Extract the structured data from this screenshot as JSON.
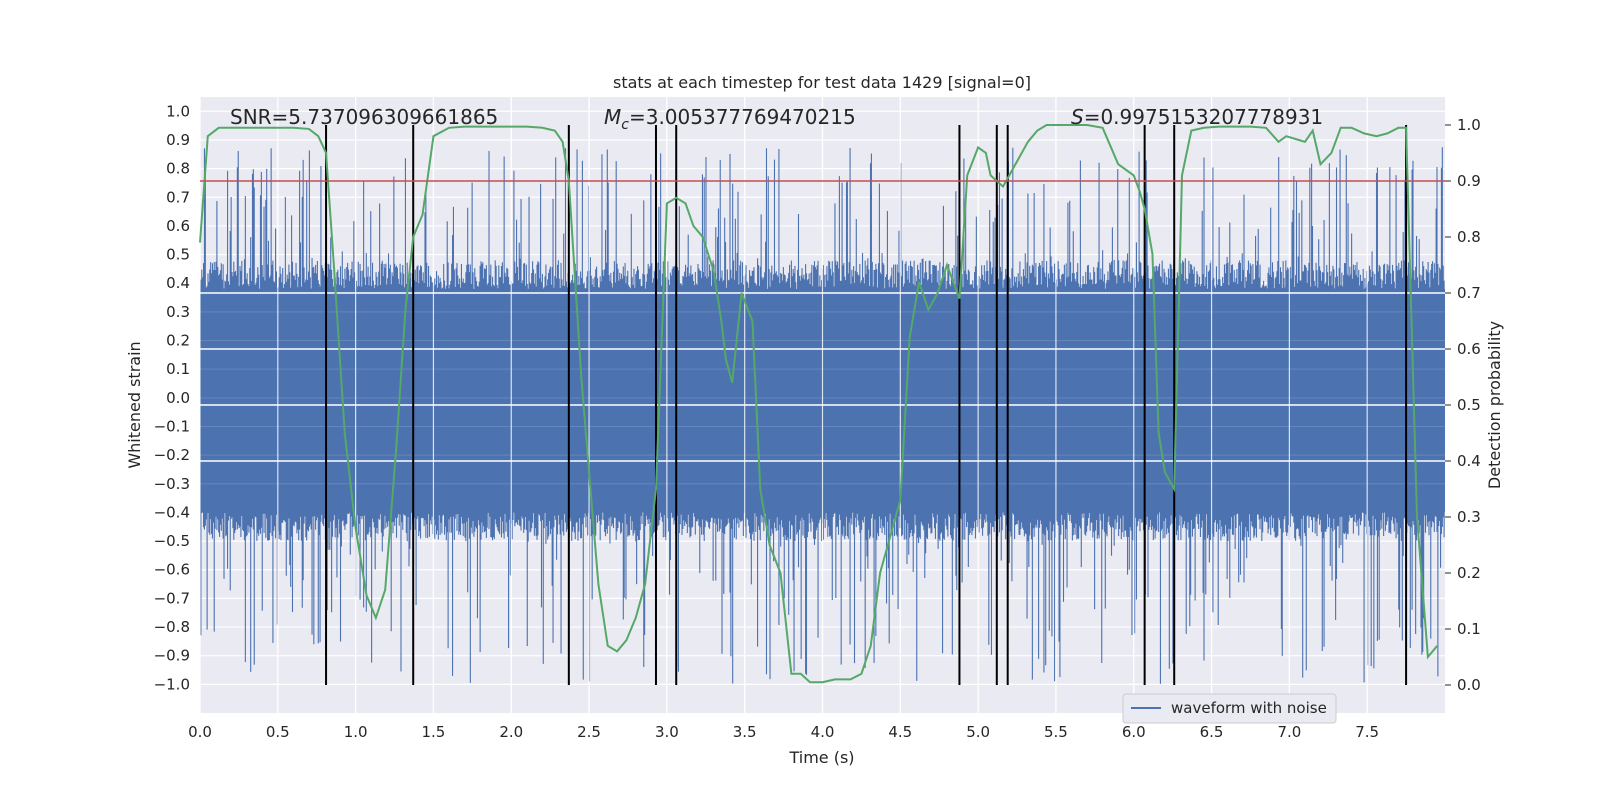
{
  "chart_data": {
    "type": "line",
    "title": "stats at each timestep for test data 1429 [signal=0]",
    "xlabel": "Time (s)",
    "ylabel": "Whitened strain",
    "y2label": "Detection probability",
    "xlim": [
      0,
      8.0
    ],
    "ylim": [
      -1.1,
      1.05
    ],
    "y2lim": [
      -0.05,
      1.05
    ],
    "xticks": [
      "0.0",
      "0.5",
      "1.0",
      "1.5",
      "2.0",
      "2.5",
      "3.0",
      "3.5",
      "4.0",
      "4.5",
      "5.0",
      "5.5",
      "6.0",
      "6.5",
      "7.0",
      "7.5"
    ],
    "yticks": [
      "-1.0",
      "-0.9",
      "-0.8",
      "-0.7",
      "-0.6",
      "-0.5",
      "-0.4",
      "-0.3",
      "-0.2",
      "-0.1",
      "0.0",
      "0.1",
      "0.2",
      "0.3",
      "0.4",
      "0.5",
      "0.6",
      "0.7",
      "0.8",
      "0.9",
      "1.0"
    ],
    "y2ticks": [
      "0.0",
      "0.1",
      "0.2",
      "0.3",
      "0.4",
      "0.5",
      "0.6",
      "0.7",
      "0.8",
      "0.9",
      "1.0"
    ],
    "annotations": {
      "snr": "SNR=5.737096309661865",
      "mc_symbol": "M",
      "mc_sub": "c",
      "mc_value": "=3.005377769470215",
      "s_symbol": "S",
      "s_value": "=0.9975153207778931"
    },
    "legend": {
      "label": "waveform with noise",
      "placement": "lower-right"
    },
    "threshold": 0.9,
    "vlines": [
      0.81,
      1.37,
      2.37,
      2.93,
      3.06,
      4.88,
      5.12,
      5.19,
      6.07,
      6.26,
      7.75
    ],
    "series": [
      {
        "name": "waveform with noise",
        "color": "#4c72b0",
        "axis": "left",
        "band_low": -0.4,
        "band_high": 0.38,
        "spike_max": 0.88,
        "spike_min": -1.0,
        "samples": 1400,
        "x_start": 0.0,
        "x_end": 8.0
      },
      {
        "name": "detection probability",
        "color": "#55a868",
        "axis": "right",
        "x": [
          0.0,
          0.05,
          0.12,
          0.2,
          0.3,
          0.4,
          0.5,
          0.6,
          0.7,
          0.76,
          0.81,
          0.86,
          0.93,
          1.0,
          1.07,
          1.13,
          1.19,
          1.26,
          1.32,
          1.37,
          1.43,
          1.5,
          1.6,
          1.7,
          1.8,
          2.0,
          2.1,
          2.2,
          2.28,
          2.33,
          2.37,
          2.45,
          2.5,
          2.56,
          2.62,
          2.68,
          2.74,
          2.8,
          2.86,
          2.93,
          3.0,
          3.06,
          3.12,
          3.17,
          3.23,
          3.3,
          3.35,
          3.38,
          3.42,
          3.48,
          3.55,
          3.6,
          3.66,
          3.73,
          3.8,
          3.86,
          3.92,
          4.0,
          4.08,
          4.18,
          4.25,
          4.31,
          4.37,
          4.43,
          4.5,
          4.56,
          4.62,
          4.68,
          4.74,
          4.8,
          4.88,
          4.93,
          5.0,
          5.05,
          5.08,
          5.12,
          5.16,
          5.2,
          5.26,
          5.32,
          5.38,
          5.44,
          5.5,
          5.6,
          5.7,
          5.8,
          5.9,
          6.0,
          6.04,
          6.07,
          6.12,
          6.16,
          6.2,
          6.26,
          6.31,
          6.37,
          6.45,
          6.55,
          6.65,
          6.75,
          6.85,
          6.93,
          6.98,
          7.04,
          7.1,
          7.15,
          7.2,
          7.27,
          7.33,
          7.4,
          7.48,
          7.56,
          7.63,
          7.7,
          7.75,
          7.82,
          7.89,
          7.95
        ],
        "y": [
          0.79,
          0.98,
          0.995,
          0.995,
          0.995,
          0.995,
          0.995,
          0.995,
          0.993,
          0.98,
          0.95,
          0.75,
          0.45,
          0.28,
          0.16,
          0.12,
          0.17,
          0.42,
          0.67,
          0.8,
          0.84,
          0.98,
          0.995,
          0.997,
          0.997,
          0.997,
          0.997,
          0.995,
          0.99,
          0.97,
          0.9,
          0.55,
          0.38,
          0.18,
          0.07,
          0.06,
          0.08,
          0.12,
          0.18,
          0.35,
          0.86,
          0.87,
          0.86,
          0.82,
          0.8,
          0.74,
          0.65,
          0.58,
          0.54,
          0.7,
          0.65,
          0.35,
          0.25,
          0.2,
          0.02,
          0.02,
          0.005,
          0.005,
          0.01,
          0.01,
          0.02,
          0.07,
          0.2,
          0.26,
          0.33,
          0.62,
          0.72,
          0.67,
          0.7,
          0.75,
          0.69,
          0.91,
          0.96,
          0.95,
          0.91,
          0.9,
          0.89,
          0.91,
          0.94,
          0.97,
          0.99,
          1.0,
          1.0,
          1.0,
          1.0,
          0.995,
          0.93,
          0.91,
          0.88,
          0.85,
          0.77,
          0.45,
          0.38,
          0.35,
          0.91,
          0.99,
          0.995,
          0.997,
          0.997,
          0.997,
          0.995,
          0.97,
          0.98,
          0.975,
          0.97,
          0.99,
          0.93,
          0.95,
          0.995,
          0.995,
          0.985,
          0.98,
          0.985,
          0.995,
          0.995,
          0.3,
          0.05,
          0.07
        ]
      },
      {
        "name": "threshold",
        "color": "#c44e52",
        "axis": "right"
      }
    ]
  }
}
